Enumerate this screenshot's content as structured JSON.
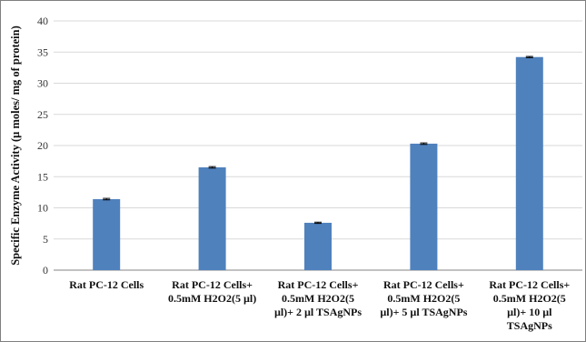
{
  "chart_data": {
    "type": "bar",
    "title": "",
    "xlabel": "",
    "ylabel": "Specific Enzyme Activity (µ moles/ mg of protein)",
    "ylim": [
      0,
      40
    ],
    "yticks": [
      0,
      5,
      10,
      15,
      20,
      25,
      30,
      35,
      40
    ],
    "grid": true,
    "legend": "none",
    "categories": [
      [
        "Rat PC-12 Cells"
      ],
      [
        "Rat PC-12 Cells+",
        "0.5mM H2O2(5 µl)"
      ],
      [
        "Rat PC-12 Cells+",
        "0.5mM H2O2(5",
        "µl)+ 2 µl TSAgNPs"
      ],
      [
        "Rat PC-12 Cells+",
        "0.5mM H2O2(5",
        "µl)+ 5 µl TSAgNPs"
      ],
      [
        "Rat PC-12 Cells+",
        "0.5mM H2O2(5",
        "µl)+ 10 µl",
        "TSAgNPs"
      ]
    ],
    "values": [
      11.4,
      16.5,
      7.6,
      20.3,
      34.2
    ],
    "error": [
      0.12,
      0.12,
      0.1,
      0.12,
      0.1
    ],
    "colors": {
      "bar": "#4f81bd",
      "grid": "#d9d9d9",
      "axis": "#868686"
    }
  }
}
